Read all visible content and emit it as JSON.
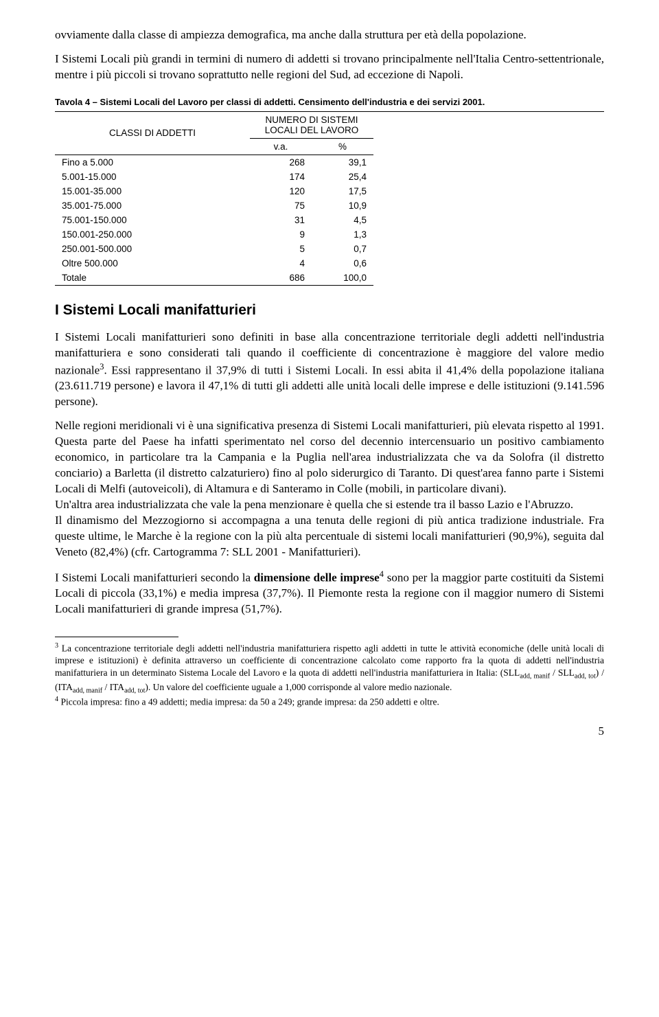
{
  "para1": "ovviamente dalla classe di ampiezza demografica, ma anche dalla struttura per età della popolazione.",
  "para2": "I Sistemi Locali più grandi in termini di numero di addetti si trovano principalmente nell'Italia Centro-settentrionale, mentre i più piccoli si trovano soprattutto nelle regioni del Sud, ad eccezione di Napoli.",
  "table": {
    "caption": "Tavola 4 – Sistemi Locali del Lavoro per classi di addetti. Censimento dell'industria e dei servizi 2001.",
    "row_header_label": "CLASSI DI ADDETTI",
    "col_group_label": "NUMERO DI SISTEMI LOCALI DEL LAVORO",
    "sub_col1": "v.a.",
    "sub_col2": "%",
    "rows": [
      {
        "label": "Fino a 5.000",
        "va": "268",
        "pct": "39,1"
      },
      {
        "label": "5.001-15.000",
        "va": "174",
        "pct": "25,4"
      },
      {
        "label": "15.001-35.000",
        "va": "120",
        "pct": "17,5"
      },
      {
        "label": "35.001-75.000",
        "va": "75",
        "pct": "10,9"
      },
      {
        "label": "75.001-150.000",
        "va": "31",
        "pct": "4,5"
      },
      {
        "label": "150.001-250.000",
        "va": "9",
        "pct": "1,3"
      },
      {
        "label": "250.001-500.000",
        "va": "5",
        "pct": "0,7"
      },
      {
        "label": "Oltre 500.000",
        "va": "4",
        "pct": "0,6"
      }
    ],
    "total": {
      "label": "Totale",
      "va": "686",
      "pct": "100,0"
    }
  },
  "section_title": "I Sistemi Locali manifatturieri",
  "para3_part1": "I Sistemi Locali manifatturieri sono definiti in base alla concentrazione territoriale degli addetti nell'industria manifatturiera e sono considerati tali quando il coefficiente di concentrazione è maggiore del valore medio nazionale",
  "para3_sup": "3",
  "para3_part2": ". Essi rappresentano il 37,9% di tutti i Sistemi Locali. In essi abita il 41,4% della popolazione italiana (23.611.719 persone) e lavora il 47,1% di tutti gli addetti alle unità locali delle imprese e delle istituzioni (9.141.596 persone).",
  "para4": "Nelle regioni meridionali vi è una significativa presenza di Sistemi Locali manifatturieri, più elevata rispetto al 1991. Questa parte del Paese ha infatti sperimentato nel corso del decennio intercensuario un positivo cambiamento economico, in particolare tra la Campania e la Puglia nell'area industrializzata che va da Solofra (il distretto conciario) a Barletta (il distretto calzaturiero) fino al polo siderurgico di Taranto. Di quest'area fanno parte i Sistemi Locali di Melfi (autoveicoli), di Altamura e di Santeramo in Colle (mobili, in particolare divani).",
  "para5": "Un'altra area industrializzata che vale la pena menzionare è quella che si estende tra il basso Lazio e l'Abruzzo.",
  "para6": "Il dinamismo del Mezzogiorno si accompagna a una tenuta delle regioni di più antica tradizione industriale. Fra queste ultime, le Marche è la regione con la più alta percentuale di sistemi locali manifatturieri (90,9%), seguita dal Veneto (82,4%) (cfr. Cartogramma 7: SLL 2001 - Manifatturieri).",
  "para7_part1": "I Sistemi Locali manifatturieri secondo la ",
  "para7_bold": "dimensione delle imprese",
  "para7_sup": "4",
  "para7_part2": " sono per la maggior parte costituiti da Sistemi Locali di piccola (33,1%) e media impresa (37,7%). Il Piemonte resta la regione con il maggior numero di Sistemi Locali manifatturieri di grande impresa (51,7%).",
  "footnote3": {
    "num": "3",
    "text_part1": " La concentrazione territoriale degli addetti nell'industria manifatturiera rispetto agli addetti in tutte le attività economiche (delle unità locali di imprese e istituzioni) è definita attraverso un coefficiente di concentrazione calcolato come rapporto fra la quota di addetti nell'industria manifatturiera in un determinato Sistema Locale del Lavoro e la quota di addetti nell'industria manifatturiera in Italia: (SLL",
    "sub1": "add, manif",
    "text_part2": " / SLL",
    "sub2": "add, tot",
    "text_part3": ") / (ITA",
    "sub3": "add, manif",
    "text_part4": " / ITA",
    "sub4": "add, tot",
    "text_part5": "). Un valore del coefficiente uguale a 1,000 corrisponde al valore medio nazionale."
  },
  "footnote4": {
    "num": "4",
    "text": " Piccola impresa: fino a 49 addetti; media impresa: da 50 a 249; grande impresa: da 250 addetti e oltre."
  },
  "page_number": "5"
}
